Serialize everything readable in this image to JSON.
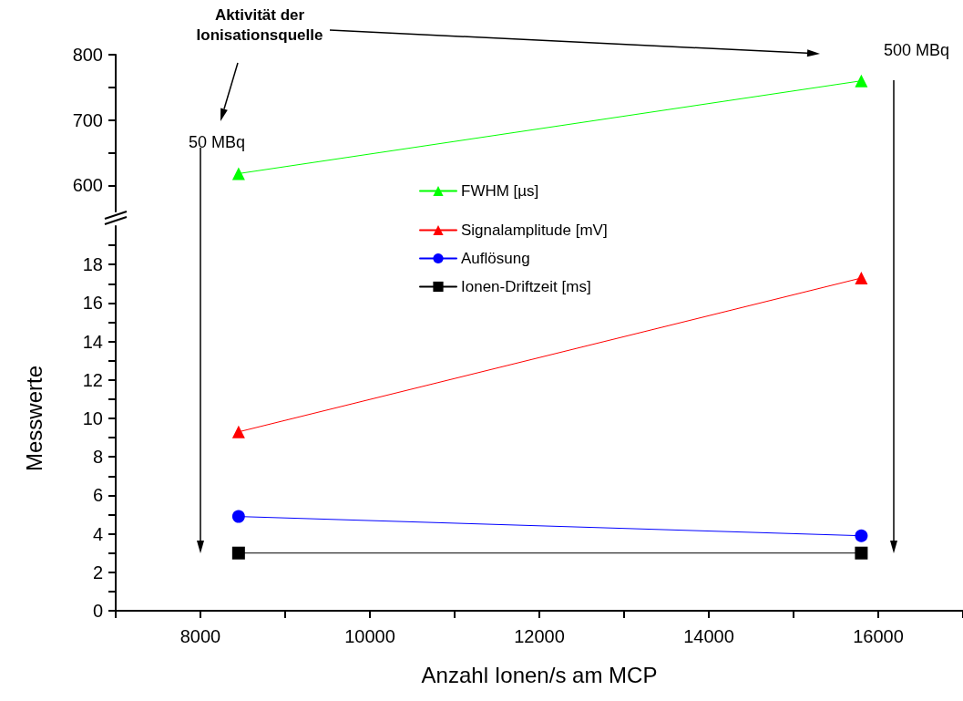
{
  "chart_data": [
    {
      "type": "line",
      "xlim": [
        7000,
        17000
      ],
      "ylim": [
        560,
        800
      ],
      "yticks": [
        600,
        {
          "value": 650,
          "label": null
        },
        700,
        {
          "value": 750,
          "label": null
        },
        800
      ],
      "tick_labels": "y",
      "legend": "bottom",
      "line_style": "solid",
      "series": [
        {
          "name": "FWHM [µs]",
          "color": "#00ff00",
          "marker": "triangle",
          "x": [
            8450,
            15800
          ],
          "values": [
            618,
            760
          ]
        }
      ],
      "annotations": [
        "Aktivität der Ionisationsquelle",
        "50 MBq",
        "500 MBq"
      ]
    },
    {
      "type": "line",
      "x": [
        8450,
        15800
      ],
      "xlim": [
        7000,
        17000
      ],
      "xticks": [
        {
          "value": 7000,
          "label": null
        },
        8000,
        {
          "value": 9000,
          "label": null
        },
        10000,
        {
          "value": 11000,
          "label": null
        },
        12000,
        {
          "value": 13000,
          "label": null
        },
        14000,
        {
          "value": 15000,
          "label": null
        },
        16000,
        {
          "value": 17000,
          "label": null
        }
      ],
      "ylim": [
        0,
        20
      ],
      "yticks": [
        0,
        {
          "value": 1,
          "label": null
        },
        2,
        {
          "value": 3,
          "label": null
        },
        4,
        {
          "value": 5,
          "label": null
        },
        6,
        {
          "value": 7,
          "label": null
        },
        8,
        {
          "value": 9,
          "label": null
        },
        10,
        {
          "value": 11,
          "label": null
        },
        12,
        {
          "value": 13,
          "label": null
        },
        14,
        {
          "value": 15,
          "label": null
        },
        16,
        {
          "value": 17,
          "label": null
        },
        18,
        {
          "value": 19,
          "label": null
        }
      ],
      "xlabel": "Anzahl Ionen/s am MCP",
      "ylabel": "Messwerte",
      "legend": "top",
      "line_style": "solid",
      "series": [
        {
          "name": "Signalamplitude [mV]",
          "color": "#ff0000",
          "marker": "triangle",
          "values": [
            9.3,
            17.3
          ]
        },
        {
          "name": "Auflösung",
          "color": "#0000ff",
          "marker": "circle",
          "values": [
            4.9,
            3.9
          ]
        },
        {
          "name": "Ionen-Driftzeit [ms]",
          "color": "#000000",
          "marker": "square",
          "values": [
            3.0,
            3.0
          ]
        }
      ]
    }
  ]
}
